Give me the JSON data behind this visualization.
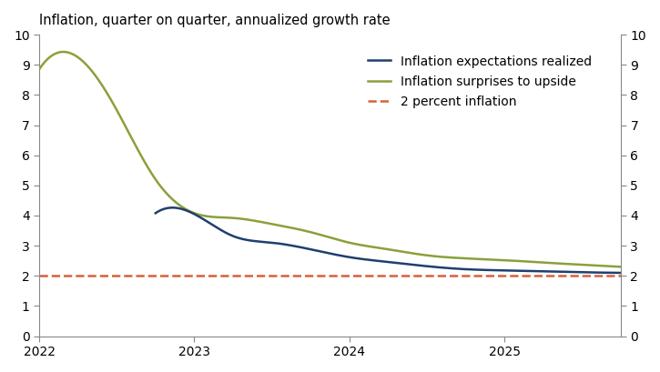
{
  "title": "Inflation, quarter on quarter, annualized growth rate",
  "ylim": [
    0,
    10
  ],
  "yticks": [
    0,
    1,
    2,
    3,
    4,
    5,
    6,
    7,
    8,
    9,
    10
  ],
  "xlim_start": 2022.0,
  "xlim_end": 2025.75,
  "xtick_positions": [
    2022,
    2023,
    2024,
    2025
  ],
  "xtick_labels": [
    "2022",
    "2023",
    "2024",
    "2025"
  ],
  "dashed_line_y": 2.0,
  "dashed_line_color": "#d9603a",
  "blue_line_color": "#1f3f6e",
  "green_line_color": "#8ba03a",
  "green_x": [
    2022.0,
    2022.25,
    2022.5,
    2022.75,
    2023.0,
    2023.25,
    2023.5,
    2023.75,
    2024.0,
    2024.25,
    2024.5,
    2024.75,
    2025.0,
    2025.25,
    2025.5,
    2025.75
  ],
  "green_y": [
    8.85,
    9.25,
    7.5,
    5.2,
    4.08,
    3.92,
    3.72,
    3.45,
    3.1,
    2.88,
    2.68,
    2.58,
    2.52,
    2.44,
    2.37,
    2.3
  ],
  "blue_x": [
    2022.75,
    2023.0,
    2023.25,
    2023.5,
    2023.75,
    2024.0,
    2024.25,
    2024.5,
    2024.75,
    2025.0,
    2025.25,
    2025.5,
    2025.75
  ],
  "blue_y": [
    4.08,
    4.05,
    3.32,
    3.1,
    2.88,
    2.62,
    2.46,
    2.32,
    2.22,
    2.18,
    2.15,
    2.12,
    2.1
  ],
  "legend_labels": [
    "Inflation expectations realized",
    "Inflation surprises to upside",
    "2 percent inflation"
  ],
  "blue_linewidth": 1.8,
  "green_linewidth": 1.8,
  "dashed_linewidth": 1.8,
  "background_color": "#ffffff",
  "title_fontsize": 10.5,
  "tick_fontsize": 10,
  "legend_fontsize": 10
}
